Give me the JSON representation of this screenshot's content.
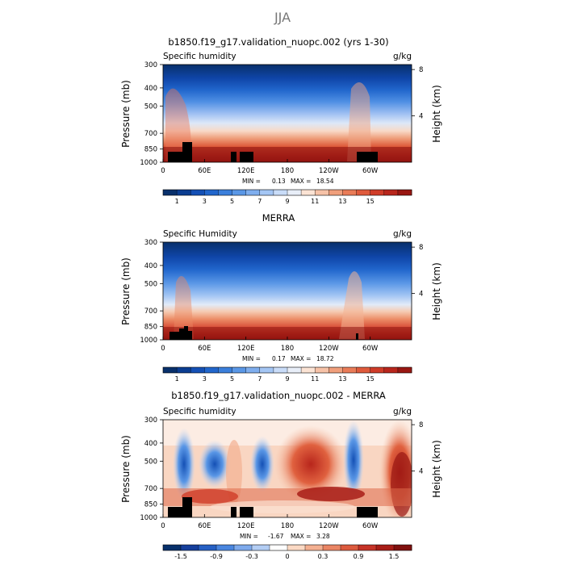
{
  "page_title": "JJA",
  "chart_data": [
    {
      "type": "heatmap",
      "title": "b1850.f19_g17.validation_nuopc.002 (yrs 1-30)",
      "variable_label": "Specific humidity",
      "units": "g/kg",
      "ylabel": "Pressure (mb)",
      "ylabel_right": "Height (km)",
      "x_ticks": [
        "0",
        "60E",
        "120E",
        "180",
        "120W",
        "60W"
      ],
      "y_ticks": [
        "300",
        "400",
        "500",
        "700",
        "850",
        "1000"
      ],
      "y_right_ticks": [
        "8",
        "4"
      ],
      "stats": {
        "min_label": "MIN =",
        "min": "0.13",
        "max_label": "MAX =",
        "max": "18.54"
      },
      "colorbar": {
        "colors": [
          "#08306b",
          "#0b3d91",
          "#1450b5",
          "#2166cc",
          "#3b7fdb",
          "#5a97e6",
          "#7faeee",
          "#a4c6f4",
          "#c9dcf8",
          "#e8eef8",
          "#fbe3d4",
          "#f6c2a7",
          "#f09f7c",
          "#e97c58",
          "#df5a3c",
          "#cf3c28",
          "#b8261c",
          "#991712"
        ],
        "labels": [
          "1",
          "3",
          "5",
          "7",
          "9",
          "11",
          "13",
          "15"
        ]
      }
    },
    {
      "type": "heatmap",
      "title": "MERRA",
      "variable_label": "Specific Humidity",
      "units": "g/kg",
      "ylabel": "Pressure (mb)",
      "ylabel_right": "Height (km)",
      "x_ticks": [
        "0",
        "60E",
        "120E",
        "180",
        "120W",
        "60W"
      ],
      "y_ticks": [
        "300",
        "400",
        "500",
        "700",
        "850",
        "1000"
      ],
      "y_right_ticks": [
        "8",
        "4"
      ],
      "stats": {
        "min_label": "MIN =",
        "min": "0.17",
        "max_label": "MAX =",
        "max": "18.72"
      },
      "colorbar": {
        "colors": [
          "#08306b",
          "#0b3d91",
          "#1450b5",
          "#2166cc",
          "#3b7fdb",
          "#5a97e6",
          "#7faeee",
          "#a4c6f4",
          "#c9dcf8",
          "#e8eef8",
          "#fbe3d4",
          "#f6c2a7",
          "#f09f7c",
          "#e97c58",
          "#df5a3c",
          "#cf3c28",
          "#b8261c",
          "#991712"
        ],
        "labels": [
          "1",
          "3",
          "5",
          "7",
          "9",
          "11",
          "13",
          "15"
        ]
      }
    },
    {
      "type": "heatmap",
      "title": "b1850.f19_g17.validation_nuopc.002 - MERRA",
      "variable_label": "Specific humidity",
      "units": "g/kg",
      "ylabel": "Pressure (mb)",
      "ylabel_right": "Height (km)",
      "x_ticks": [
        "0",
        "60E",
        "120E",
        "180",
        "120W",
        "60W"
      ],
      "y_ticks": [
        "300",
        "400",
        "500",
        "700",
        "850",
        "1000"
      ],
      "y_right_ticks": [
        "8",
        "4"
      ],
      "stats": {
        "min_label": "MIN =",
        "min": "-1.67",
        "max_label": "MAX =",
        "max": "3.28"
      },
      "colorbar": {
        "colors": [
          "#08306b",
          "#163f9c",
          "#2660c4",
          "#4a86df",
          "#7eaaec",
          "#b3cdf4",
          "#ffffff",
          "#fbd9c4",
          "#f4b091",
          "#ea8564",
          "#dc5a3e",
          "#c63327",
          "#a81d17",
          "#80100e"
        ],
        "labels": [
          "-1.5",
          "-0.9",
          "-0.3",
          "0",
          "0.3",
          "0.9",
          "1.5"
        ]
      }
    }
  ]
}
